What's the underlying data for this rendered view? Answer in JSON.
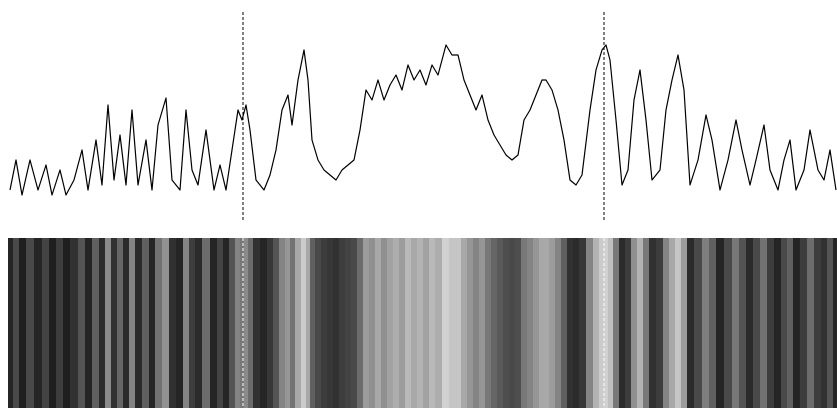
{
  "chart_data": {
    "type": "line",
    "x": [
      10,
      16,
      22,
      30,
      38,
      46,
      52,
      60,
      66,
      74,
      82,
      88,
      96,
      102,
      108,
      114,
      120,
      126,
      132,
      138,
      146,
      152,
      158,
      166,
      172,
      180,
      186,
      192,
      198,
      206,
      214,
      220,
      226,
      232,
      238,
      242,
      246,
      250,
      256,
      264,
      270,
      276,
      282,
      288,
      292,
      298,
      304,
      308,
      312,
      318,
      324,
      330,
      336,
      342,
      348,
      354,
      360,
      366,
      372,
      378,
      384,
      390,
      396,
      402,
      408,
      414,
      420,
      426,
      432,
      438,
      446,
      452,
      458,
      464,
      470,
      476,
      482,
      488,
      494,
      500,
      506,
      512,
      518,
      524,
      530,
      536,
      542,
      546,
      552,
      558,
      564,
      570,
      576,
      582,
      590,
      596,
      602,
      606,
      610,
      616,
      622,
      628,
      634,
      640,
      646,
      652,
      660,
      666,
      672,
      678,
      684,
      690,
      698,
      706,
      712,
      720,
      728,
      736,
      742,
      750,
      756,
      764,
      770,
      778,
      784,
      790,
      796,
      804,
      810,
      818,
      824,
      830,
      836
    ],
    "values": [
      10,
      40,
      5,
      40,
      10,
      35,
      5,
      30,
      5,
      20,
      50,
      10,
      60,
      15,
      95,
      20,
      65,
      15,
      90,
      15,
      60,
      10,
      75,
      102,
      20,
      10,
      90,
      30,
      15,
      70,
      10,
      35,
      10,
      50,
      90,
      80,
      95,
      70,
      20,
      10,
      25,
      50,
      90,
      105,
      75,
      120,
      150,
      120,
      60,
      40,
      30,
      25,
      20,
      30,
      35,
      40,
      70,
      110,
      100,
      120,
      100,
      115,
      125,
      110,
      135,
      120,
      130,
      115,
      135,
      125,
      155,
      145,
      145,
      120,
      105,
      90,
      105,
      80,
      65,
      55,
      45,
      40,
      45,
      80,
      90,
      105,
      120,
      120,
      110,
      90,
      60,
      20,
      15,
      25,
      90,
      130,
      150,
      155,
      140,
      80,
      15,
      30,
      100,
      130,
      80,
      20,
      30,
      90,
      120,
      145,
      110,
      15,
      40,
      85,
      60,
      10,
      40,
      80,
      50,
      15,
      40,
      75,
      30,
      10,
      40,
      60,
      10,
      30,
      70,
      30,
      20,
      50,
      10
    ],
    "color": "#000000",
    "xlim": [
      10,
      836
    ],
    "ylim": [
      0,
      160
    ],
    "markers": [
      243,
      604
    ]
  }
}
